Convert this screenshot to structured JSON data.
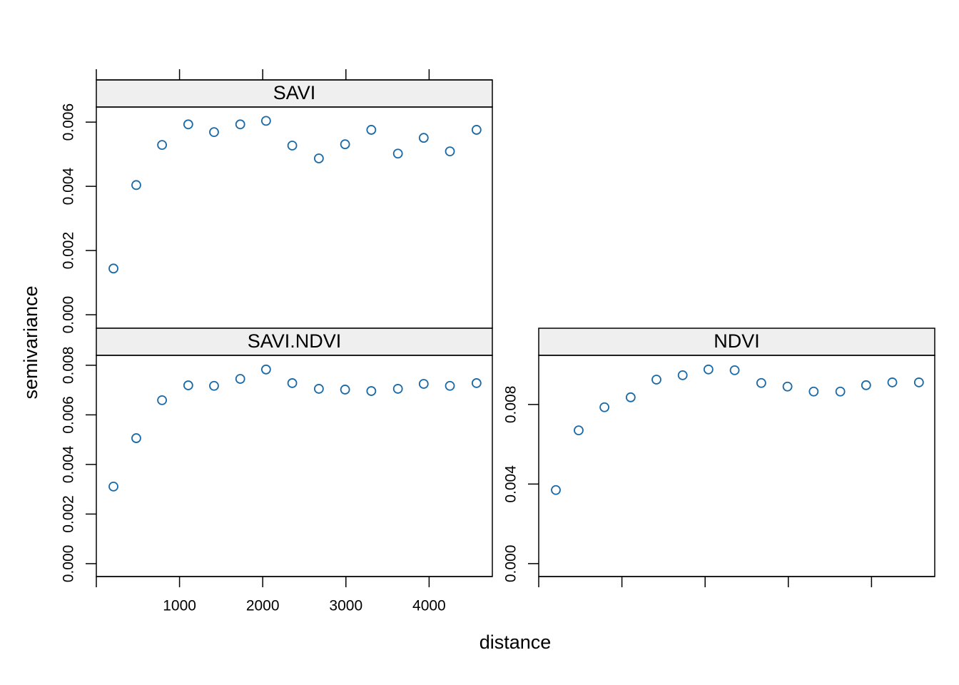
{
  "xlabel": "distance",
  "ylabel": "semivariance",
  "chart_data": [
    {
      "type": "scatter",
      "title": "SAVI",
      "color": "#1a6aa8",
      "x_axis": "top",
      "xtick_labels": false,
      "x": [
        206,
        480,
        790,
        1105,
        1415,
        1730,
        2040,
        2355,
        2675,
        2990,
        3305,
        3625,
        3935,
        4250,
        4570
      ],
      "values": [
        0.00144,
        0.00404,
        0.00529,
        0.00593,
        0.00569,
        0.00593,
        0.00604,
        0.00527,
        0.00487,
        0.00531,
        0.00576,
        0.00502,
        0.00551,
        0.00509,
        0.00576
      ],
      "xlim": [
        0,
        4760
      ],
      "xticks": [
        1000,
        2000,
        3000,
        4000
      ],
      "ylim": [
        -0.00042,
        0.00647
      ],
      "yticks": [
        {
          "value": 0,
          "label": "0.000"
        },
        0.002,
        0.004,
        0.006
      ]
    },
    {
      "type": "scatter",
      "title": "SAVI.NDVI",
      "color": "#1a6aa8",
      "x_axis": "bottom",
      "xtick_labels": true,
      "x": [
        206,
        480,
        790,
        1105,
        1415,
        1730,
        2040,
        2355,
        2675,
        2990,
        3305,
        3625,
        3935,
        4250,
        4570
      ],
      "values": [
        0.00311,
        0.00506,
        0.00659,
        0.00719,
        0.00717,
        0.00745,
        0.00783,
        0.00728,
        0.00705,
        0.00702,
        0.00696,
        0.00705,
        0.00725,
        0.00717,
        0.00728
      ],
      "xlim": [
        0,
        4760
      ],
      "xticks": [
        1000,
        2000,
        3000,
        4000
      ],
      "ylim": [
        -0.00052,
        0.0084
      ],
      "yticks": [
        {
          "value": 0,
          "label": "0.000"
        },
        0.002,
        0.004,
        0.006,
        0.008
      ]
    },
    {
      "type": "scatter",
      "title": "NDVI",
      "color": "#1a6aa8",
      "x_axis": "bottom",
      "xtick_labels": false,
      "x": [
        206,
        480,
        790,
        1105,
        1415,
        1730,
        2040,
        2355,
        2675,
        2990,
        3305,
        3625,
        3935,
        4250,
        4570
      ],
      "values": [
        0.0037,
        0.0067,
        0.00786,
        0.00836,
        0.00925,
        0.00947,
        0.00976,
        0.00972,
        0.00908,
        0.0089,
        0.00865,
        0.00865,
        0.00897,
        0.00911,
        0.00911
      ],
      "xlim": [
        0,
        4760
      ],
      "xticks": [
        1000,
        2000,
        3000,
        4000
      ],
      "ylim": [
        -0.00065,
        0.01047
      ],
      "yticks": [
        {
          "value": 0,
          "label": "0.000"
        },
        0.004,
        0.008
      ]
    }
  ]
}
